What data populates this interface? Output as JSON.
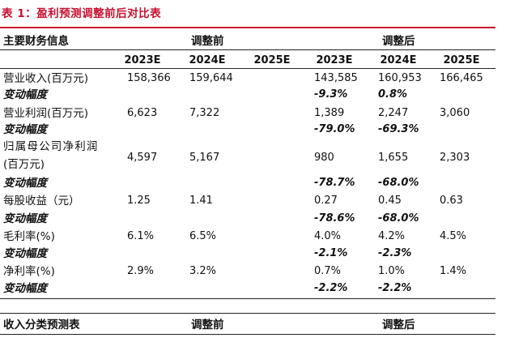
{
  "title": "表 1：盈利预测调整前后对比表",
  "header": {
    "main_label": "主要财务信息",
    "group_before": "调整前",
    "group_after": "调整后",
    "years": [
      "2023E",
      "2024E",
      "2025E",
      "2023E",
      "2024E",
      "2025E"
    ]
  },
  "rows": {
    "revenue": {
      "label": "营业收入(百万元)",
      "v": [
        "158,366",
        "159,644",
        "",
        "143,585",
        "160,953",
        "166,465"
      ]
    },
    "revenue_chg": {
      "label": "变动幅度",
      "v": [
        "",
        "",
        "",
        "-9.3%",
        "0.8%",
        ""
      ]
    },
    "op_profit": {
      "label": "营业利润(百万元)",
      "v": [
        "6,623",
        "7,322",
        "",
        "1,389",
        "2,247",
        "3,060"
      ]
    },
    "op_profit_chg": {
      "label": "变动幅度",
      "v": [
        "",
        "",
        "",
        "-79.0%",
        "-69.3%",
        ""
      ]
    },
    "net_profit": {
      "label_line1": "归属母公司净利润",
      "label_line2": "(百万元)",
      "v": [
        "4,597",
        "5,167",
        "",
        "980",
        "1,655",
        "2,303"
      ]
    },
    "net_profit_chg": {
      "label": "变动幅度",
      "v": [
        "",
        "",
        "",
        "-78.7%",
        "-68.0%",
        ""
      ]
    },
    "eps": {
      "label": "每股收益（元）",
      "v": [
        "1.25",
        "1.41",
        "",
        "0.27",
        "0.45",
        "0.63"
      ]
    },
    "eps_chg": {
      "label": "变动幅度",
      "v": [
        "",
        "",
        "",
        "-78.6%",
        "-68.0%",
        ""
      ]
    },
    "gross_margin": {
      "label": "毛利率(%)",
      "v": [
        "6.1%",
        "6.5%",
        "",
        "4.0%",
        "4.2%",
        "4.5%"
      ]
    },
    "gross_margin_chg": {
      "label": "变动幅度",
      "v": [
        "",
        "",
        "",
        "-2.1%",
        "-2.3%",
        ""
      ]
    },
    "net_margin": {
      "label": "净利率(%)",
      "v": [
        "2.9%",
        "3.2%",
        "",
        "0.7%",
        "1.0%",
        "1.4%"
      ]
    },
    "net_margin_chg": {
      "label": "变动幅度",
      "v": [
        "",
        "",
        "",
        "-2.2%",
        "-2.2%",
        ""
      ]
    }
  },
  "second_table": {
    "main_label": "收入分类预测表",
    "group_before": "调整前",
    "group_after": "调整后"
  }
}
